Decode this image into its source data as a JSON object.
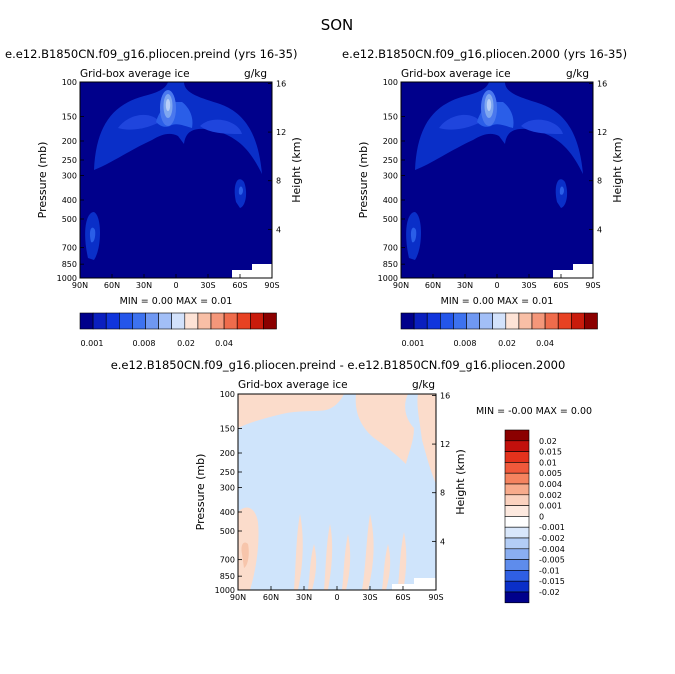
{
  "figure_title": "SON",
  "colors": {
    "navy": "#00008b",
    "blue_mid": "#0a2fc8",
    "blue_light": "#2a5ee8",
    "blue_pale": "#7fa7f0",
    "blue_core": "#b8cff8",
    "diff_neg": "#cfe4fb",
    "diff_pos": "#fbdccb",
    "diff_pos2": "#f7c5ab"
  },
  "panels": [
    {
      "title": "e.e12.B1850CN.f09_g16.pliocen.preind (yrs 16-35)",
      "left_label": "Grid-box average ice",
      "right_label": "g/kg",
      "stats": "MIN =    0.00   MAX =    0.01",
      "colorbar_labels": [
        "0.001",
        "0.008",
        "0.02",
        "0.04"
      ]
    },
    {
      "title": "e.e12.B1850CN.f09_g16.pliocen.2000 (yrs 16-35)",
      "left_label": "Grid-box average ice",
      "right_label": "g/kg",
      "stats": "MIN =    0.00   MAX =    0.01",
      "colorbar_labels": [
        "0.001",
        "0.008",
        "0.02",
        "0.04"
      ]
    },
    {
      "title": "e.e12.B1850CN.f09_g16.pliocen.preind - e.e12.B1850CN.f09_g16.pliocen.2000",
      "left_label": "Grid-box average ice",
      "right_label": "g/kg",
      "stats": "MIN =   -0.00   MAX =    0.00",
      "colorbar_labels": [
        "0.02",
        "0.015",
        "0.01",
        "0.005",
        "0.004",
        "0.002",
        "0.001",
        "0",
        "-0.001",
        "-0.002",
        "-0.004",
        "-0.005",
        "-0.01",
        "-0.015",
        "-0.02"
      ]
    }
  ],
  "chart_data": {
    "type": "heatmap",
    "title": "SON",
    "xlabel": "",
    "ylabel": "Pressure (mb)",
    "ylabel_right": "Height (km)",
    "x_ticks": [
      "90N",
      "60N",
      "30N",
      "0",
      "30S",
      "60S",
      "90S"
    ],
    "y_ticks": [
      "100",
      "150",
      "200",
      "250",
      "300",
      "400",
      "500",
      "700",
      "850",
      "1000"
    ],
    "height_ticks": [
      "16",
      "12",
      "8",
      "4"
    ],
    "colorbar_levels": [
      0.001,
      0.002,
      0.004,
      0.006,
      0.008,
      0.01,
      0.015,
      0.02,
      0.025,
      0.03,
      0.035,
      0.04,
      0.045,
      0.05
    ],
    "colorbar_colors": [
      "#00008b",
      "#0a1fbf",
      "#1035dc",
      "#2456ea",
      "#3d72ef",
      "#6f98f2",
      "#a2bff7",
      "#d3e2fb",
      "#fde3d6",
      "#f8bfa6",
      "#f4977a",
      "#ef6c4c",
      "#e84223",
      "#c91b0c",
      "#8b0000"
    ],
    "diff_levels": [
      0.02,
      0.015,
      0.01,
      0.005,
      0.004,
      0.002,
      0.001,
      0,
      -0.001,
      -0.002,
      -0.004,
      -0.005,
      -0.01,
      -0.015,
      -0.02
    ],
    "diff_colors": [
      "#8b0000",
      "#c2100c",
      "#e3321c",
      "#f0593b",
      "#f5835f",
      "#f8ab8c",
      "#fbd2bf",
      "#fde9df",
      "#ffffff",
      "#d9e7fb",
      "#b3cdf6",
      "#8aaef1",
      "#5e8cec",
      "#2f5fe3",
      "#0a2fc8",
      "#00008b"
    ]
  }
}
